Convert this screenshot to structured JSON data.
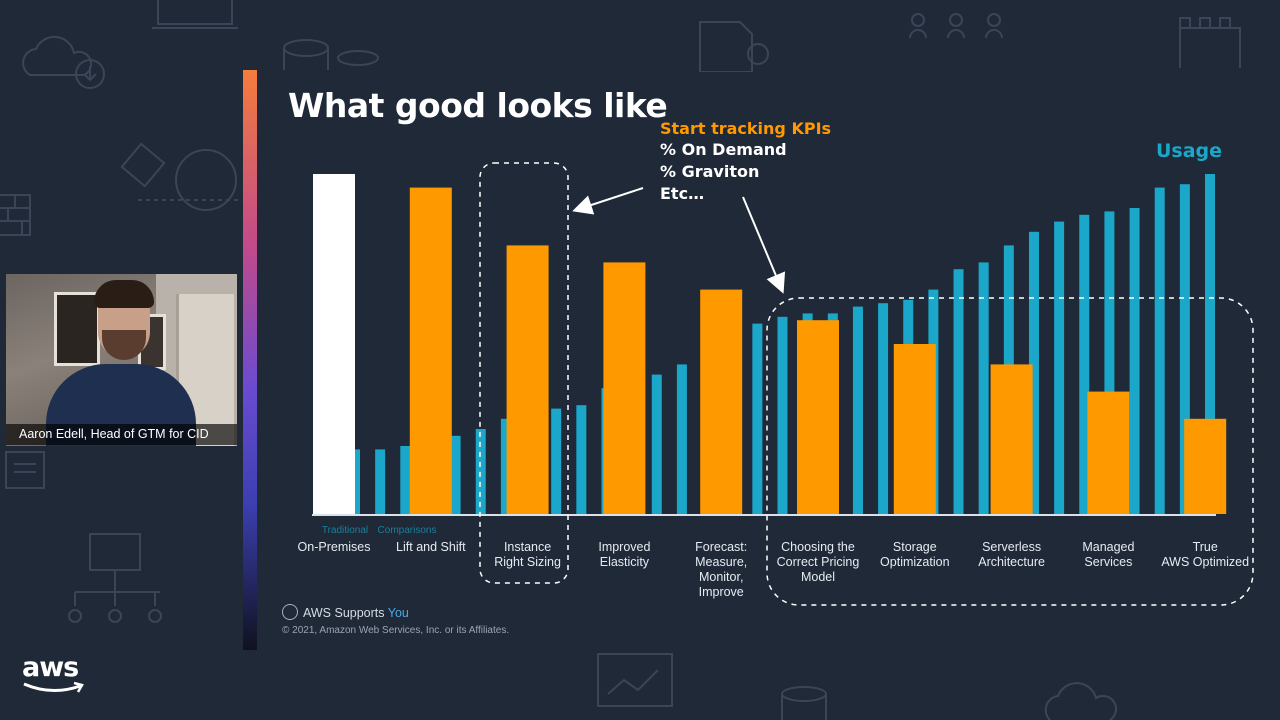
{
  "slide": {
    "title": "What good looks like",
    "kpi_heading": "Start tracking KPIs",
    "kpi_lines": [
      "% On Demand",
      "% Graviton",
      "Etc…"
    ],
    "usage_label": "Usage",
    "aws_supports": "AWS Supports",
    "aws_supports_you": "You",
    "copyright": "© 2021, Amazon Web Services, Inc. or its Affiliates.",
    "aws_logo_text": "aws"
  },
  "webcam": {
    "name_caption": "Aaron Edell, Head of GTM for CID"
  },
  "colors": {
    "background": "#1f2938",
    "usage_bar": "#1ba7c9",
    "cost_bar": "#ff9900",
    "on_premises_bar": "#ffffff",
    "kpi_heading": "#ff9900"
  },
  "chart_data": {
    "type": "bar",
    "ylim": [
      0,
      100
    ],
    "legend_labels": [
      "Traditional",
      "Comparisons"
    ],
    "categories": [
      [
        "On-Premises"
      ],
      [
        "Lift and Shift"
      ],
      [
        "Instance",
        "Right Sizing"
      ],
      [
        "Improved",
        "Elasticity"
      ],
      [
        "Forecast:",
        "Measure,",
        "Monitor,",
        "Improve"
      ],
      [
        "Choosing the",
        "Correct Pricing",
        "Model"
      ],
      [
        "Storage",
        "Optimization"
      ],
      [
        "Serverless",
        "Architecture"
      ],
      [
        "Managed",
        "Services"
      ],
      [
        "True",
        "AWS Optimized"
      ]
    ],
    "cost_values": [
      100,
      96,
      79,
      74,
      66,
      57,
      50,
      44,
      36,
      28
    ],
    "usage_series": [
      19,
      19,
      20,
      22,
      23,
      25,
      28,
      29,
      31,
      32,
      37,
      38,
      41,
      44,
      51,
      53,
      56,
      58,
      59,
      59,
      61,
      62,
      63,
      66,
      72,
      74,
      79,
      83,
      86,
      88,
      89,
      90,
      96,
      97,
      100
    ]
  }
}
